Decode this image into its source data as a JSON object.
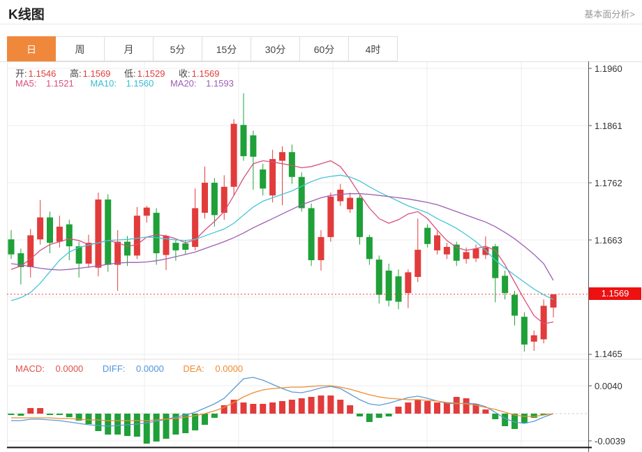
{
  "header": {
    "title": "K线图",
    "link": "基本面分析>"
  },
  "tabs": {
    "items": [
      {
        "label": "日",
        "selected": true
      },
      {
        "label": "周",
        "selected": false
      },
      {
        "label": "月",
        "selected": false
      },
      {
        "label": "5分",
        "selected": false
      },
      {
        "label": "15分",
        "selected": false
      },
      {
        "label": "30分",
        "selected": false
      },
      {
        "label": "60分",
        "selected": false
      },
      {
        "label": "4时",
        "selected": false
      }
    ]
  },
  "ohlc": {
    "open_label": "开:",
    "open": "1.1546",
    "high_label": "高:",
    "high": "1.1569",
    "low_label": "低:",
    "low": "1.1529",
    "close_label": "收:",
    "close": "1.1569"
  },
  "ma_legend": {
    "ma5_label": "MA5:",
    "ma5": "1.1521",
    "ma10_label": "MA10:",
    "ma10": "1.1560",
    "ma20_label": "MA20:",
    "ma20": "1.1593"
  },
  "macd_legend": {
    "macd_label": "MACD:",
    "macd": "0.0000",
    "diff_label": "DIFF:",
    "diff": "0.0000",
    "dea_label": "DEA:",
    "dea": "0.0000"
  },
  "price_axis": {
    "labels": [
      "1.1960",
      "1.1861",
      "1.1762",
      "1.1663",
      "1.1465"
    ],
    "current": "1.1569"
  },
  "macd_axis": {
    "max": "0.0040",
    "min": "-0.0039"
  },
  "chart_data": {
    "type": "candlestick",
    "title": "K线图 (daily K-line with MA5/MA10/MA20 and MACD panel)",
    "y_axis": {
      "ticks": [
        1.196,
        1.1861,
        1.1762,
        1.1663,
        1.1564,
        1.1465
      ],
      "current_price": 1.1569
    },
    "macd_axis": {
      "max": 0.004,
      "min": -0.0039
    },
    "colors": {
      "up": "#e23b3b",
      "down": "#1fa038",
      "ma5": "#d94f7e",
      "ma10": "#45c5d6",
      "ma20": "#9d5fb4",
      "diff": "#5a9bd8",
      "dea": "#ef8b31",
      "current_line": "#f23a3a",
      "badge": "#ee1111",
      "tab_accent": "#f0883c",
      "grid": "#ececec",
      "axis": "#555555"
    },
    "candles_ohlc": [
      [
        1.1664,
        1.168,
        1.163,
        1.1638
      ],
      [
        1.164,
        1.1648,
        1.1586,
        1.1616
      ],
      [
        1.1616,
        1.1682,
        1.1598,
        1.1671
      ],
      [
        1.1664,
        1.1732,
        1.1655,
        1.1702
      ],
      [
        1.1702,
        1.1712,
        1.164,
        1.1658
      ],
      [
        1.166,
        1.1705,
        1.165,
        1.1686
      ],
      [
        1.169,
        1.1698,
        1.1628,
        1.1652
      ],
      [
        1.1652,
        1.166,
        1.1598,
        1.1622
      ],
      [
        1.1622,
        1.1672,
        1.1615,
        1.1658
      ],
      [
        1.1615,
        1.1745,
        1.16,
        1.1733
      ],
      [
        1.1733,
        1.1742,
        1.1608,
        1.162
      ],
      [
        1.162,
        1.168,
        1.1575,
        1.166
      ],
      [
        1.166,
        1.167,
        1.1618,
        1.1636
      ],
      [
        1.1636,
        1.172,
        1.163,
        1.1705
      ],
      [
        1.1705,
        1.1722,
        1.1693,
        1.1719
      ],
      [
        1.171,
        1.1718,
        1.162,
        1.164
      ],
      [
        1.1637,
        1.1672,
        1.1611,
        1.167
      ],
      [
        1.1658,
        1.1663,
        1.1627,
        1.1645
      ],
      [
        1.1657,
        1.1662,
        1.1638,
        1.1646
      ],
      [
        1.1651,
        1.1752,
        1.1645,
        1.1718
      ],
      [
        1.171,
        1.179,
        1.17,
        1.1762
      ],
      [
        1.1762,
        1.177,
        1.1686,
        1.1706
      ],
      [
        1.171,
        1.1775,
        1.1698,
        1.1755
      ],
      [
        1.1755,
        1.1872,
        1.174,
        1.1864
      ],
      [
        1.1862,
        1.1917,
        1.18,
        1.1808
      ],
      [
        1.1844,
        1.1852,
        1.175,
        1.1807
      ],
      [
        1.1785,
        1.1795,
        1.174,
        1.1752
      ],
      [
        1.174,
        1.1819,
        1.1728,
        1.1803
      ],
      [
        1.18,
        1.1825,
        1.1723,
        1.1815
      ],
      [
        1.1815,
        1.1828,
        1.176,
        1.1772
      ],
      [
        1.1772,
        1.178,
        1.1712,
        1.1718
      ],
      [
        1.1718,
        1.1726,
        1.1618,
        1.1628
      ],
      [
        1.1628,
        1.168,
        1.161,
        1.1668
      ],
      [
        1.1668,
        1.1745,
        1.166,
        1.1738
      ],
      [
        1.173,
        1.176,
        1.1722,
        1.175
      ],
      [
        1.1716,
        1.1745,
        1.171,
        1.1736
      ],
      [
        1.1736,
        1.174,
        1.1655,
        1.1668
      ],
      [
        1.1668,
        1.1672,
        1.162,
        1.163
      ],
      [
        1.1629,
        1.1636,
        1.1553,
        1.1568
      ],
      [
        1.161,
        1.1622,
        1.1548,
        1.1558
      ],
      [
        1.16,
        1.1612,
        1.1543,
        1.1556
      ],
      [
        1.1571,
        1.1612,
        1.1545,
        1.1607
      ],
      [
        1.1599,
        1.17,
        1.159,
        1.1646
      ],
      [
        1.1684,
        1.169,
        1.165,
        1.1656
      ],
      [
        1.1645,
        1.1678,
        1.1638,
        1.1671
      ],
      [
        1.1638,
        1.1658,
        1.163,
        1.1651
      ],
      [
        1.1655,
        1.166,
        1.1618,
        1.1627
      ],
      [
        1.163,
        1.165,
        1.1622,
        1.1642
      ],
      [
        1.1631,
        1.1655,
        1.1625,
        1.1648
      ],
      [
        1.1637,
        1.1669,
        1.163,
        1.165
      ],
      [
        1.1652,
        1.1656,
        1.1555,
        1.1597
      ],
      [
        1.1601,
        1.161,
        1.156,
        1.1571
      ],
      [
        1.1568,
        1.1575,
        1.1515,
        1.1532
      ],
      [
        1.153,
        1.1538,
        1.147,
        1.1482
      ],
      [
        1.1487,
        1.1506,
        1.1471,
        1.1498
      ],
      [
        1.1491,
        1.156,
        1.1484,
        1.1549
      ],
      [
        1.1546,
        1.1569,
        1.1529,
        1.1569
      ]
    ],
    "ma5": [
      1.1612,
      1.1618,
      1.163,
      1.1645,
      1.1655,
      1.166,
      1.1665,
      1.1662,
      1.1655,
      1.1658,
      1.1662,
      1.1658,
      1.1652,
      1.1655,
      1.1668,
      1.1672,
      1.167,
      1.1665,
      1.1658,
      1.1663,
      1.168,
      1.1695,
      1.1712,
      1.174,
      1.177,
      1.1795,
      1.18,
      1.1798,
      1.1795,
      1.1792,
      1.1788,
      1.179,
      1.1795,
      1.18,
      1.179,
      1.1768,
      1.1742,
      1.1718,
      1.17,
      1.1692,
      1.1698,
      1.1708,
      1.1712,
      1.17,
      1.168,
      1.1662,
      1.165,
      1.1645,
      1.1648,
      1.1652,
      1.1645,
      1.162,
      1.159,
      1.156,
      1.1532,
      1.1518,
      1.1521
    ],
    "ma10": [
      1.1558,
      1.1563,
      1.1572,
      1.1588,
      1.1608,
      1.1628,
      1.1642,
      1.165,
      1.1654,
      1.1658,
      1.1662,
      1.1663,
      1.1664,
      1.1666,
      1.1668,
      1.1667,
      1.1665,
      1.1663,
      1.1662,
      1.1664,
      1.167,
      1.1676,
      1.1682,
      1.1692,
      1.1706,
      1.172,
      1.173,
      1.1736,
      1.1742,
      1.1748,
      1.1756,
      1.1764,
      1.177,
      1.1773,
      1.1775,
      1.1772,
      1.1765,
      1.1755,
      1.1746,
      1.1738,
      1.173,
      1.1722,
      1.1716,
      1.171,
      1.17,
      1.1692,
      1.1683,
      1.1672,
      1.166,
      1.1645,
      1.1628,
      1.1615,
      1.1602,
      1.159,
      1.1578,
      1.1568,
      1.156
    ],
    "ma20": [
      1.1622,
      1.162,
      1.1617,
      1.1614,
      1.1612,
      1.1611,
      1.1612,
      1.1614,
      1.1616,
      1.1618,
      1.1621,
      1.1623,
      1.1624,
      1.1624,
      1.1625,
      1.1627,
      1.163,
      1.1634,
      1.1638,
      1.1642,
      1.1648,
      1.1654,
      1.166,
      1.1667,
      1.1675,
      1.1684,
      1.1692,
      1.17,
      1.1708,
      1.1716,
      1.1724,
      1.173,
      1.1736,
      1.174,
      1.1742,
      1.1743,
      1.1743,
      1.1742,
      1.174,
      1.1738,
      1.1736,
      1.1734,
      1.1731,
      1.1728,
      1.1724,
      1.1718,
      1.1712,
      1.1706,
      1.17,
      1.1694,
      1.1686,
      1.1676,
      1.1665,
      1.1652,
      1.1638,
      1.1622,
      1.1593
    ],
    "macd_histogram": [
      -0.0002,
      -0.0003,
      0.0008,
      0.0008,
      -0.0002,
      -0.0002,
      -0.0005,
      -0.001,
      -0.0015,
      -0.0025,
      -0.003,
      -0.003,
      -0.0032,
      -0.0033,
      -0.0043,
      -0.004,
      -0.0036,
      -0.003,
      -0.0028,
      -0.0024,
      -0.0016,
      -0.0006,
      0.0012,
      0.002,
      0.0016,
      0.0014,
      0.0014,
      0.0016,
      0.0018,
      0.002,
      0.0022,
      0.0024,
      0.0026,
      0.0026,
      0.002,
      0.0012,
      -0.0004,
      -0.0012,
      -0.0006,
      -0.0004,
      0.001,
      0.0016,
      0.002,
      0.0018,
      0.0016,
      0.0016,
      0.0024,
      0.0022,
      0.0014,
      0.0006,
      -0.0008,
      -0.0018,
      -0.0022,
      -0.0014,
      -0.0006,
      -0.0002,
      0.0
    ],
    "diff": [
      -0.001,
      -0.001,
      -0.0008,
      -0.0008,
      -0.0009,
      -0.001,
      -0.0012,
      -0.0014,
      -0.0016,
      -0.0017,
      -0.0018,
      -0.0017,
      -0.0016,
      -0.0015,
      -0.0013,
      -0.0011,
      -0.0008,
      -0.0005,
      -0.0002,
      0.0002,
      0.0008,
      0.0014,
      0.0022,
      0.0036,
      0.005,
      0.0052,
      0.0048,
      0.0042,
      0.0036,
      0.0031,
      0.003,
      0.0033,
      0.0037,
      0.0039,
      0.0036,
      0.0028,
      0.002,
      0.0014,
      0.0012,
      0.0015,
      0.0019,
      0.0023,
      0.0025,
      0.0022,
      0.0018,
      0.0015,
      0.0014,
      0.0015,
      0.0014,
      0.001,
      0.0002,
      -0.0007,
      -0.0012,
      -0.0014,
      -0.0011,
      -0.0005,
      0.0
    ],
    "dea": [
      -0.0006,
      -0.0006,
      -0.0006,
      -0.0006,
      -0.0006,
      -0.0007,
      -0.0007,
      -0.0008,
      -0.0009,
      -0.0009,
      -0.001,
      -0.001,
      -0.001,
      -0.001,
      -0.001,
      -0.0009,
      -0.0008,
      -0.0007,
      -0.0005,
      -0.0003,
      0.0,
      0.0004,
      0.0009,
      0.0016,
      0.0024,
      0.003,
      0.0034,
      0.0036,
      0.0037,
      0.0038,
      0.0038,
      0.0039,
      0.004,
      0.004,
      0.0038,
      0.0035,
      0.0031,
      0.0027,
      0.0024,
      0.0022,
      0.0021,
      0.002,
      0.002,
      0.0019,
      0.0018,
      0.0016,
      0.0015,
      0.0014,
      0.0012,
      0.0009,
      0.0006,
      0.0002,
      -0.0002,
      -0.0004,
      -0.0004,
      -0.0002,
      0.0
    ]
  }
}
